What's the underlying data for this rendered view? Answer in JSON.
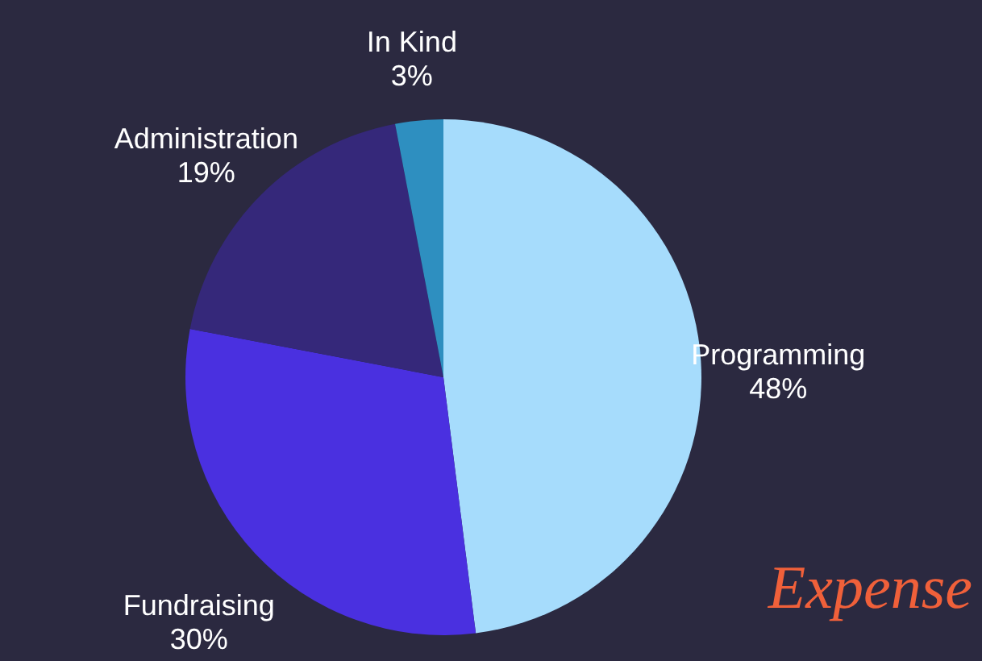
{
  "chart_data": {
    "type": "pie",
    "title": "Expense",
    "categories": [
      "Programming",
      "Fundraising",
      "Administration",
      "In Kind"
    ],
    "values": [
      48,
      30,
      19,
      3
    ],
    "value_labels": [
      "48%",
      "30%",
      "19%",
      "3%"
    ],
    "colors": [
      "#a6dcfc",
      "#4a30e0",
      "#35287a",
      "#2e8fc0"
    ],
    "legend": false
  }
}
